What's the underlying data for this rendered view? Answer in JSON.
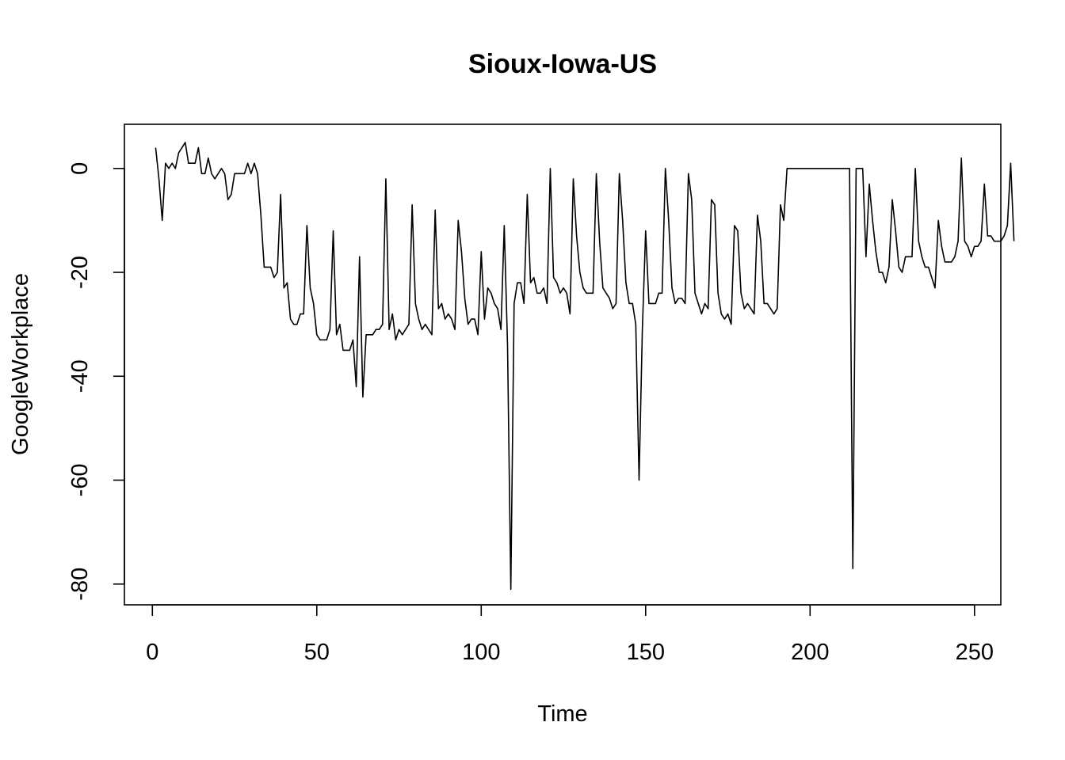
{
  "chart_data": {
    "type": "line",
    "title": "Sioux-Iowa-US",
    "xlabel": "Time",
    "ylabel": "GoogleWorkplace",
    "xlim": [
      -8.5,
      258
    ],
    "ylim": [
      -84,
      8.5
    ],
    "x_ticks": [
      0,
      50,
      100,
      150,
      200,
      250
    ],
    "y_ticks": [
      0,
      -20,
      -40,
      -60,
      -80
    ],
    "grid": false,
    "legend": "none",
    "color": "#000000",
    "series": [
      {
        "x_start": 1,
        "values": [
          4,
          -2,
          -10,
          1,
          0,
          1,
          0,
          3,
          4,
          5,
          1,
          1,
          1,
          4,
          -1,
          -1,
          2,
          -1,
          -2,
          -1,
          0,
          -1,
          -6,
          -5,
          -1,
          -1,
          -1,
          -1,
          1,
          -1,
          1,
          -1,
          -9,
          -19,
          -19,
          -19,
          -21,
          -20,
          -5,
          -23,
          -22,
          -29,
          -30,
          -30,
          -28,
          -28,
          -11,
          -23,
          -26,
          -32,
          -33,
          -33,
          -33,
          -31,
          -12,
          -32,
          -30,
          -35,
          -35,
          -35,
          -33,
          -42,
          -17,
          -44,
          -32,
          -32,
          -32,
          -31,
          -31,
          -30,
          -2,
          -31,
          -28,
          -33,
          -31,
          -32,
          -31,
          -30,
          -7,
          -26,
          -29,
          -31,
          -30,
          -31,
          -32,
          -8,
          -27,
          -26,
          -29,
          -28,
          -29,
          -31,
          -10,
          -16,
          -25,
          -30,
          -29,
          -29,
          -32,
          -16,
          -29,
          -23,
          -24,
          -26,
          -27,
          -31,
          -11,
          -34,
          -81,
          -26,
          -22,
          -22,
          -26,
          -5,
          -22,
          -21,
          -24,
          -24,
          -23,
          -26,
          0,
          -21,
          -22,
          -24,
          -23,
          -24,
          -28,
          -2,
          -13,
          -20,
          -23,
          -24,
          -24,
          -24,
          -1,
          -14,
          -23,
          -24,
          -25,
          -27,
          -26,
          -1,
          -10,
          -22,
          -26,
          -26,
          -30,
          -60,
          -31,
          -12,
          -26,
          -26,
          -26,
          -24,
          -24,
          0,
          -10,
          -23,
          -26,
          -25,
          -25,
          -26,
          -1,
          -6,
          -24,
          -26,
          -28,
          -26,
          -27,
          -6,
          -7,
          -24,
          -28,
          -29,
          -28,
          -30,
          -11,
          -12,
          -24,
          -27,
          -26,
          -27,
          -28,
          -9,
          -14,
          -26,
          -26,
          -27,
          -28,
          -27,
          -7,
          -10,
          0,
          0,
          0,
          0,
          0,
          0,
          0,
          0,
          0,
          0,
          0,
          0,
          0,
          0,
          0,
          0,
          0,
          0,
          0,
          0,
          -77,
          0,
          0,
          0,
          -17,
          -3,
          -10,
          -16,
          -20,
          -20,
          -22,
          -19,
          -6,
          -12,
          -19,
          -20,
          -17,
          -17,
          -17,
          0,
          -14,
          -17,
          -19,
          -19,
          -21,
          -23,
          -10,
          -15,
          -18,
          -18,
          -18,
          -17,
          -14,
          2,
          -14,
          -15,
          -17,
          -15,
          -15,
          -14,
          -3,
          -13,
          -13,
          -14,
          -14,
          -14,
          -13,
          -11,
          1,
          -14
        ]
      }
    ]
  }
}
